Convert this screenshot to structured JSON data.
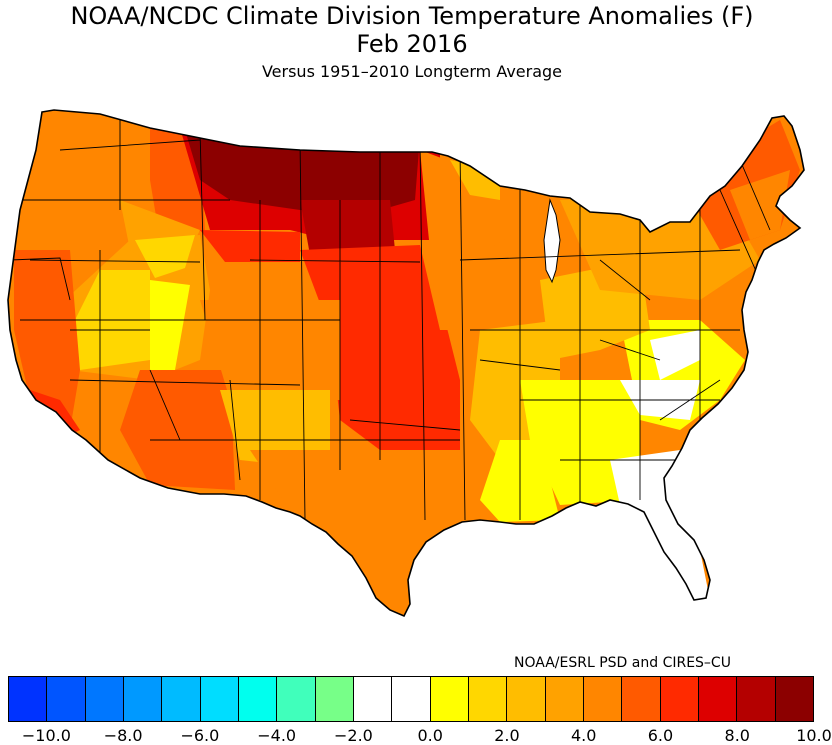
{
  "header": {
    "title": "NOAA/NCDC Climate Division Temperature Anomalies (F)",
    "date": "Feb 2016",
    "subtitle": "Versus 1951–2010 Longterm Average"
  },
  "credit": "NOAA/ESRL PSD and CIRES–CU",
  "colors": {
    "nodata": "#ffffff",
    "y": "#ffff00",
    "ly": "#ffd700",
    "g": "#ffbd00",
    "o": "#ffa200",
    "do": "#ff8600",
    "ro": "#ff5a00",
    "r": "#ff2a00",
    "dr": "#dd0000",
    "mr": "#b40000",
    "br": "#8c0000"
  },
  "colorbar": {
    "colors": [
      "#0033ff",
      "#0055ff",
      "#0077ff",
      "#0099ff",
      "#00bbff",
      "#00ddff",
      "#00ffee",
      "#40ffbb",
      "#77ff88",
      "#ffffff",
      "#ffffff",
      "#ffff00",
      "#ffd700",
      "#ffbd00",
      "#ffa200",
      "#ff8600",
      "#ff5a00",
      "#ff2a00",
      "#dd0000",
      "#b40000",
      "#8c0000"
    ],
    "ticks": [
      {
        "label": "−10.0",
        "value": -10
      },
      {
        "label": "−8.0",
        "value": -8
      },
      {
        "label": "−6.0",
        "value": -6
      },
      {
        "label": "−4.0",
        "value": -4
      },
      {
        "label": "−2.0",
        "value": -2
      },
      {
        "label": "0.0",
        "value": 0
      },
      {
        "label": "2.0",
        "value": 2
      },
      {
        "label": "4.0",
        "value": 4
      },
      {
        "label": "6.0",
        "value": 6
      },
      {
        "label": "8.0",
        "value": 8
      },
      {
        "label": "10.0",
        "value": 10
      }
    ]
  }
}
